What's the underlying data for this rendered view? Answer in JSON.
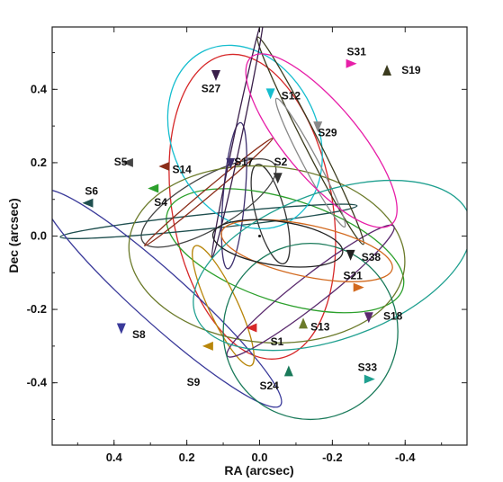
{
  "chart_data": {
    "type": "scatter",
    "title": "",
    "xlabel": "RA (arcsec)",
    "ylabel": "Dec (arcsec)",
    "xlim": [
      0.57,
      -0.57
    ],
    "ylim": [
      -0.57,
      0.57
    ],
    "x_direction": "decreasing to the right",
    "grid": false,
    "legend": "none",
    "x_ticks": [
      0.4,
      0.2,
      0.0,
      -0.2,
      -0.4
    ],
    "x_tick_labels": [
      "0.4",
      "0.2",
      "0.0",
      "-0.2",
      "-0.4"
    ],
    "y_ticks": [
      0.4,
      0.2,
      0.0,
      -0.2,
      -0.4
    ],
    "y_tick_labels": [
      "0.4",
      "0.2",
      "0.0",
      "-0.2",
      "-0.4"
    ],
    "orbit_center": [
      0.0,
      0.0
    ],
    "series": [
      {
        "name": "S1",
        "color": "#d62728",
        "ellipse": {
          "cx": 0.02,
          "cy": 0.08,
          "rx": 0.22,
          "ry": 0.42,
          "rot": -10
        },
        "label_pos": [
          -0.03,
          -0.29
        ],
        "arrow": {
          "at": [
            0.02,
            -0.25
          ],
          "dir": "left"
        }
      },
      {
        "name": "S2",
        "color": "#333333",
        "ellipse": {
          "cx": -0.03,
          "cy": 0.06,
          "rx": 0.04,
          "ry": 0.14,
          "rot": -15
        },
        "label_pos": [
          -0.04,
          0.2
        ],
        "arrow": {
          "at": [
            -0.05,
            0.16
          ],
          "dir": "down"
        }
      },
      {
        "name": "S4",
        "color": "#2ca02c",
        "ellipse": {
          "cx": -0.07,
          "cy": -0.04,
          "rx": 0.34,
          "ry": 0.14,
          "rot": 18
        },
        "label_pos": [
          0.29,
          0.09
        ],
        "arrow": {
          "at": [
            0.29,
            0.13
          ],
          "dir": "left"
        }
      },
      {
        "name": "S5",
        "color": "#444444",
        "ellipse": {
          "cx": 0.14,
          "cy": 0.09,
          "rx": 0.21,
          "ry": 0.07,
          "rot": -30
        },
        "label_pos": [
          0.4,
          0.2
        ],
        "arrow": {
          "at": [
            0.36,
            0.2
          ],
          "dir": "left"
        }
      },
      {
        "name": "S6",
        "color": "#1f4f4f",
        "ellipse": {
          "cx": 0.14,
          "cy": 0.04,
          "rx": 0.41,
          "ry": 0.02,
          "rot": -6
        },
        "label_pos": [
          0.48,
          0.12
        ],
        "arrow": {
          "at": [
            0.47,
            0.09
          ],
          "dir": "left"
        }
      },
      {
        "name": "S8",
        "color": "#3a3a9a",
        "ellipse": {
          "cx": 0.27,
          "cy": -0.17,
          "rx": 0.44,
          "ry": 0.07,
          "rot": 42
        },
        "label_pos": [
          0.35,
          -0.27
        ],
        "arrow": {
          "at": [
            0.38,
            -0.25
          ],
          "dir": "down"
        }
      },
      {
        "name": "S9",
        "color": "#b8860b",
        "ellipse": {
          "cx": 0.1,
          "cy": -0.19,
          "rx": 0.04,
          "ry": 0.18,
          "rot": -25
        },
        "label_pos": [
          0.2,
          -0.4
        ],
        "arrow": {
          "at": [
            0.14,
            -0.3
          ],
          "dir": "left"
        }
      },
      {
        "name": "S12",
        "color": "#17becf",
        "ellipse": {
          "cx": 0.04,
          "cy": 0.27,
          "rx": 0.2,
          "ry": 0.26,
          "rot": -25
        },
        "label_pos": [
          -0.06,
          0.38
        ],
        "arrow": {
          "at": [
            -0.03,
            0.39
          ],
          "dir": "down"
        }
      },
      {
        "name": "S13",
        "color": "#6b7a2a",
        "ellipse": {
          "cx": -0.02,
          "cy": -0.05,
          "rx": 0.38,
          "ry": 0.24,
          "rot": 5
        },
        "label_pos": [
          -0.14,
          -0.25
        ],
        "arrow": {
          "at": [
            -0.12,
            -0.24
          ],
          "dir": "up"
        }
      },
      {
        "name": "S14",
        "color": "#8b2e1a",
        "ellipse": {
          "cx": 0.14,
          "cy": 0.12,
          "rx": 0.23,
          "ry": 0.01,
          "rot": -40
        },
        "label_pos": [
          0.24,
          0.18
        ],
        "arrow": {
          "at": [
            0.26,
            0.19
          ],
          "dir": "left"
        }
      },
      {
        "name": "S17",
        "color": "#3d2f6e",
        "ellipse": {
          "cx": 0.07,
          "cy": 0.11,
          "rx": 0.03,
          "ry": 0.2,
          "rot": 5
        },
        "label_pos": [
          0.07,
          0.2
        ],
        "arrow": {
          "at": [
            0.08,
            0.2
          ],
          "dir": "down"
        }
      },
      {
        "name": "S18",
        "color": "#5a2a6e",
        "ellipse": {
          "cx": -0.14,
          "cy": -0.15,
          "rx": 0.29,
          "ry": 0.04,
          "rot": -38
        },
        "label_pos": [
          -0.34,
          -0.22
        ],
        "arrow": {
          "at": [
            -0.3,
            -0.22
          ],
          "dir": "down"
        }
      },
      {
        "name": "S19",
        "color": "#3b3b1e",
        "ellipse": {
          "cx": -0.14,
          "cy": 0.26,
          "rx": 0.32,
          "ry": 0.02,
          "rot": 63
        },
        "label_pos": [
          -0.39,
          0.45
        ],
        "arrow": {
          "at": [
            -0.35,
            0.45
          ],
          "dir": "up"
        }
      },
      {
        "name": "S21",
        "color": "#d2691e",
        "ellipse": {
          "cx": -0.13,
          "cy": -0.04,
          "rx": 0.24,
          "ry": 0.07,
          "rot": 12
        },
        "label_pos": [
          -0.23,
          -0.11
        ],
        "arrow": {
          "at": [
            -0.27,
            -0.14
          ],
          "dir": "right"
        }
      },
      {
        "name": "S24",
        "color": "#1a7a5a",
        "ellipse": {
          "cx": -0.14,
          "cy": -0.26,
          "rx": 0.24,
          "ry": 0.24,
          "rot": 0
        },
        "label_pos": [
          -0.0,
          -0.41
        ],
        "arrow": {
          "at": [
            -0.08,
            -0.37
          ],
          "dir": "up"
        }
      },
      {
        "name": "S27",
        "color": "#3a1f4a",
        "ellipse": {
          "cx": 0.06,
          "cy": 0.27,
          "rx": 0.34,
          "ry": 0.01,
          "rot": -78
        },
        "label_pos": [
          0.16,
          0.4
        ],
        "arrow": {
          "at": [
            0.12,
            0.44
          ],
          "dir": "down"
        }
      },
      {
        "name": "S29",
        "color": "#888888",
        "ellipse": {
          "cx": -0.14,
          "cy": 0.2,
          "rx": 0.2,
          "ry": 0.02,
          "rot": 62
        },
        "label_pos": [
          -0.16,
          0.28
        ],
        "arrow": {
          "at": [
            -0.16,
            0.3
          ],
          "dir": "down"
        }
      },
      {
        "name": "S31",
        "color": "#e71fa8",
        "ellipse": {
          "cx": -0.17,
          "cy": 0.26,
          "rx": 0.3,
          "ry": 0.1,
          "rot": 50
        },
        "label_pos": [
          -0.24,
          0.5
        ],
        "arrow": {
          "at": [
            -0.25,
            0.47
          ],
          "dir": "right"
        }
      },
      {
        "name": "S33",
        "color": "#20a090",
        "ellipse": {
          "cx": -0.2,
          "cy": -0.08,
          "rx": 0.4,
          "ry": 0.2,
          "rot": -20
        },
        "label_pos": [
          -0.27,
          -0.36
        ],
        "arrow": {
          "at": [
            -0.3,
            -0.39
          ],
          "dir": "right"
        }
      },
      {
        "name": "S38",
        "color": "#222222",
        "ellipse": {
          "cx": -0.05,
          "cy": -0.02,
          "rx": 0.18,
          "ry": 0.06,
          "rot": 8
        },
        "label_pos": [
          -0.28,
          -0.06
        ],
        "arrow": {
          "at": [
            -0.25,
            -0.05
          ],
          "dir": "down"
        }
      }
    ]
  }
}
